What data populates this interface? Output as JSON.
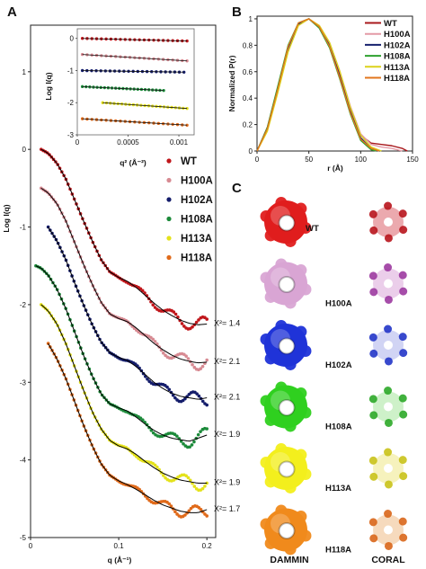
{
  "panels": {
    "a": "A",
    "b": "B",
    "c": "C"
  },
  "chart_data": [
    {
      "id": "A-main",
      "type": "scatter",
      "xlabel": "q (Å⁻¹)",
      "ylabel": "Log I(q)",
      "xlim": [
        0,
        0.21
      ],
      "ylim": [
        -5,
        1.6
      ],
      "xticks": [
        "0",
        "0.1",
        "0.2"
      ],
      "yticks": [
        "1",
        "0",
        "-1",
        "-2",
        "-3",
        "-4",
        "-5"
      ],
      "fit_line_color": "#000000",
      "series": [
        {
          "name": "WT",
          "color": "#c0161b",
          "chi2": "X²= 1.4",
          "x": [
            0.012,
            0.02,
            0.03,
            0.04,
            0.05,
            0.06,
            0.07,
            0.08,
            0.09,
            0.1,
            0.11,
            0.12,
            0.13,
            0.14,
            0.15,
            0.16,
            0.17,
            0.18,
            0.19,
            0.2
          ],
          "y": [
            0.0,
            -0.05,
            -0.18,
            -0.38,
            -0.65,
            -0.92,
            -1.18,
            -1.42,
            -1.58,
            -1.65,
            -1.7,
            -1.78,
            -1.88,
            -1.98,
            -2.07,
            -2.14,
            -2.2,
            -2.24,
            -2.26,
            -2.25
          ]
        },
        {
          "name": "H100A",
          "color": "#d78a92",
          "chi2": "X²= 2.1",
          "x": [
            0.012,
            0.02,
            0.03,
            0.04,
            0.05,
            0.06,
            0.07,
            0.08,
            0.09,
            0.1,
            0.11,
            0.12,
            0.13,
            0.14,
            0.15,
            0.16,
            0.17,
            0.18,
            0.19,
            0.2
          ],
          "y": [
            -0.5,
            -0.56,
            -0.7,
            -0.92,
            -1.2,
            -1.48,
            -1.74,
            -1.97,
            -2.12,
            -2.18,
            -2.22,
            -2.3,
            -2.4,
            -2.5,
            -2.58,
            -2.65,
            -2.7,
            -2.73,
            -2.75,
            -2.74
          ]
        },
        {
          "name": "H102A",
          "color": "#141d6b",
          "chi2": "X²= 2.1",
          "x": [
            0.02,
            0.03,
            0.04,
            0.05,
            0.06,
            0.07,
            0.08,
            0.09,
            0.1,
            0.11,
            0.12,
            0.13,
            0.14,
            0.15,
            0.16,
            0.17,
            0.18,
            0.19,
            0.2
          ],
          "y": [
            -1.0,
            -1.18,
            -1.42,
            -1.72,
            -2.0,
            -2.26,
            -2.48,
            -2.62,
            -2.68,
            -2.72,
            -2.8,
            -2.9,
            -3.0,
            -3.08,
            -3.14,
            -3.18,
            -3.2,
            -3.22,
            -3.2
          ]
        },
        {
          "name": "H108A",
          "color": "#1c8a3a",
          "chi2": "X²= 1.9",
          "x": [
            0.006,
            0.012,
            0.02,
            0.03,
            0.04,
            0.05,
            0.06,
            0.07,
            0.08,
            0.09,
            0.1,
            0.11,
            0.12,
            0.13,
            0.14,
            0.15,
            0.16,
            0.17,
            0.18,
            0.19,
            0.2
          ],
          "y": [
            -1.5,
            -1.53,
            -1.62,
            -1.8,
            -2.05,
            -2.35,
            -2.65,
            -2.92,
            -3.15,
            -3.28,
            -3.33,
            -3.37,
            -3.45,
            -3.54,
            -3.62,
            -3.68,
            -3.72,
            -3.74,
            -3.76,
            -3.72,
            -3.68
          ]
        },
        {
          "name": "H113A",
          "color": "#e4e21b",
          "chi2": "X²= 1.9",
          "x": [
            0.012,
            0.02,
            0.03,
            0.04,
            0.05,
            0.06,
            0.07,
            0.08,
            0.09,
            0.1,
            0.11,
            0.12,
            0.13,
            0.14,
            0.15,
            0.16,
            0.17,
            0.18,
            0.19,
            0.2
          ],
          "y": [
            -2.0,
            -2.08,
            -2.25,
            -2.5,
            -2.8,
            -3.1,
            -3.38,
            -3.6,
            -3.75,
            -3.82,
            -3.86,
            -3.93,
            -4.02,
            -4.1,
            -4.17,
            -4.22,
            -4.26,
            -4.28,
            -4.3,
            -4.3
          ]
        },
        {
          "name": "H118A",
          "color": "#e06a1a",
          "chi2": "X²= 1.7",
          "x": [
            0.02,
            0.03,
            0.04,
            0.05,
            0.06,
            0.07,
            0.08,
            0.09,
            0.1,
            0.11,
            0.12,
            0.13,
            0.14,
            0.15,
            0.16,
            0.17,
            0.18,
            0.19,
            0.2
          ],
          "y": [
            -2.5,
            -2.7,
            -2.95,
            -3.25,
            -3.55,
            -3.82,
            -4.05,
            -4.2,
            -4.27,
            -4.32,
            -4.38,
            -4.45,
            -4.52,
            -4.58,
            -4.62,
            -4.66,
            -4.68,
            -4.68,
            -4.64
          ]
        }
      ]
    },
    {
      "id": "A-inset",
      "type": "scatter",
      "xlabel": "q² (Å⁻²)",
      "ylabel": "Log I(q)",
      "xlim": [
        0,
        0.00115
      ],
      "ylim": [
        -3,
        0.3
      ],
      "xticks": [
        "0",
        "0.0005",
        "0.001"
      ],
      "yticks": [
        "0",
        "-1",
        "-2",
        "-3"
      ],
      "series": [
        {
          "name": "WT",
          "color": "#c0161b",
          "x": [
            5e-05,
            0.00108
          ],
          "y": [
            0.0,
            -0.08
          ]
        },
        {
          "name": "H100A",
          "color": "#d78a92",
          "x": [
            5e-05,
            0.00108
          ],
          "y": [
            -0.5,
            -0.7
          ]
        },
        {
          "name": "H102A",
          "color": "#141d6b",
          "x": [
            5e-05,
            0.00105
          ],
          "y": [
            -1.0,
            -1.05
          ]
        },
        {
          "name": "H108A",
          "color": "#1c8a3a",
          "x": [
            5e-05,
            0.00085
          ],
          "y": [
            -1.5,
            -1.62
          ]
        },
        {
          "name": "H113A",
          "color": "#e4e21b",
          "x": [
            0.00025,
            0.00108
          ],
          "y": [
            -2.0,
            -2.18
          ]
        },
        {
          "name": "H118A",
          "color": "#e06a1a",
          "x": [
            5e-05,
            0.00108
          ],
          "y": [
            -2.5,
            -2.7
          ]
        }
      ]
    },
    {
      "id": "B",
      "type": "line",
      "xlabel": "r (Å)",
      "ylabel": "Normalized P(r)",
      "xlim": [
        0,
        150
      ],
      "ylim": [
        0,
        1.02
      ],
      "xticks": [
        "0",
        "50",
        "100",
        "150"
      ],
      "yticks": [
        "0",
        "0.2",
        "0.4",
        "0.6",
        "0.8",
        "1"
      ],
      "series": [
        {
          "name": "WT",
          "color": "#a8181c",
          "x": [
            0,
            10,
            20,
            30,
            40,
            50,
            60,
            70,
            80,
            90,
            100,
            110,
            120,
            130,
            140,
            145
          ],
          "y": [
            0,
            0.18,
            0.48,
            0.78,
            0.96,
            1.0,
            0.94,
            0.8,
            0.58,
            0.32,
            0.12,
            0.06,
            0.05,
            0.04,
            0.02,
            0
          ]
        },
        {
          "name": "H100A",
          "color": "#e49aa6",
          "x": [
            0,
            10,
            20,
            30,
            40,
            50,
            60,
            70,
            80,
            90,
            100,
            110,
            120,
            130,
            140
          ],
          "y": [
            0,
            0.16,
            0.45,
            0.76,
            0.95,
            1.0,
            0.95,
            0.82,
            0.6,
            0.34,
            0.13,
            0.05,
            0.03,
            0.02,
            0
          ]
        },
        {
          "name": "H102A",
          "color": "#16206e",
          "x": [
            0,
            10,
            20,
            30,
            40,
            50,
            60,
            70,
            80,
            90,
            100,
            110,
            118
          ],
          "y": [
            0,
            0.17,
            0.47,
            0.78,
            0.96,
            1.0,
            0.94,
            0.8,
            0.56,
            0.3,
            0.1,
            0.02,
            0
          ]
        },
        {
          "name": "H108A",
          "color": "#2da12e",
          "x": [
            0,
            10,
            20,
            30,
            40,
            50,
            60,
            70,
            80,
            90,
            100,
            110,
            115
          ],
          "y": [
            0,
            0.18,
            0.49,
            0.8,
            0.97,
            1.0,
            0.93,
            0.78,
            0.54,
            0.28,
            0.08,
            0.01,
            0
          ]
        },
        {
          "name": "H113A",
          "color": "#dcd21a",
          "x": [
            0,
            10,
            20,
            30,
            40,
            50,
            60,
            70,
            80,
            90,
            100,
            110,
            120
          ],
          "y": [
            0,
            0.15,
            0.44,
            0.75,
            0.95,
            1.0,
            0.95,
            0.82,
            0.6,
            0.33,
            0.12,
            0.03,
            0
          ]
        },
        {
          "name": "H118A",
          "color": "#e2761c",
          "x": [
            0,
            10,
            20,
            30,
            40,
            50,
            60,
            70,
            80,
            90,
            100,
            110,
            118
          ],
          "y": [
            0,
            0.17,
            0.47,
            0.79,
            0.97,
            1.0,
            0.94,
            0.79,
            0.55,
            0.29,
            0.09,
            0.02,
            0
          ]
        }
      ]
    }
  ],
  "panel_c": {
    "methods": [
      "DAMMIN",
      "CORAL"
    ],
    "rows": [
      {
        "label": "WT",
        "dammin_color": "#e01d1d",
        "coral_color": "#e89aa0",
        "coral_accent": "#b8141c"
      },
      {
        "label": "H100A",
        "dammin_color": "#d9a5d4",
        "coral_color": "#e8c6e6",
        "coral_accent": "#9c3aa0"
      },
      {
        "label": "H102A",
        "dammin_color": "#1f33d8",
        "coral_color": "#c9cdf2",
        "coral_accent": "#2235c8"
      },
      {
        "label": "H108A",
        "dammin_color": "#2fd01f",
        "coral_color": "#c6efc0",
        "coral_accent": "#2ca828"
      },
      {
        "label": "H113A",
        "dammin_color": "#f3ef1d",
        "coral_color": "#f4f0b2",
        "coral_accent": "#c9c218"
      },
      {
        "label": "H118A",
        "dammin_color": "#f08a1c",
        "coral_color": "#f5d3b2",
        "coral_accent": "#d9661a"
      }
    ]
  }
}
